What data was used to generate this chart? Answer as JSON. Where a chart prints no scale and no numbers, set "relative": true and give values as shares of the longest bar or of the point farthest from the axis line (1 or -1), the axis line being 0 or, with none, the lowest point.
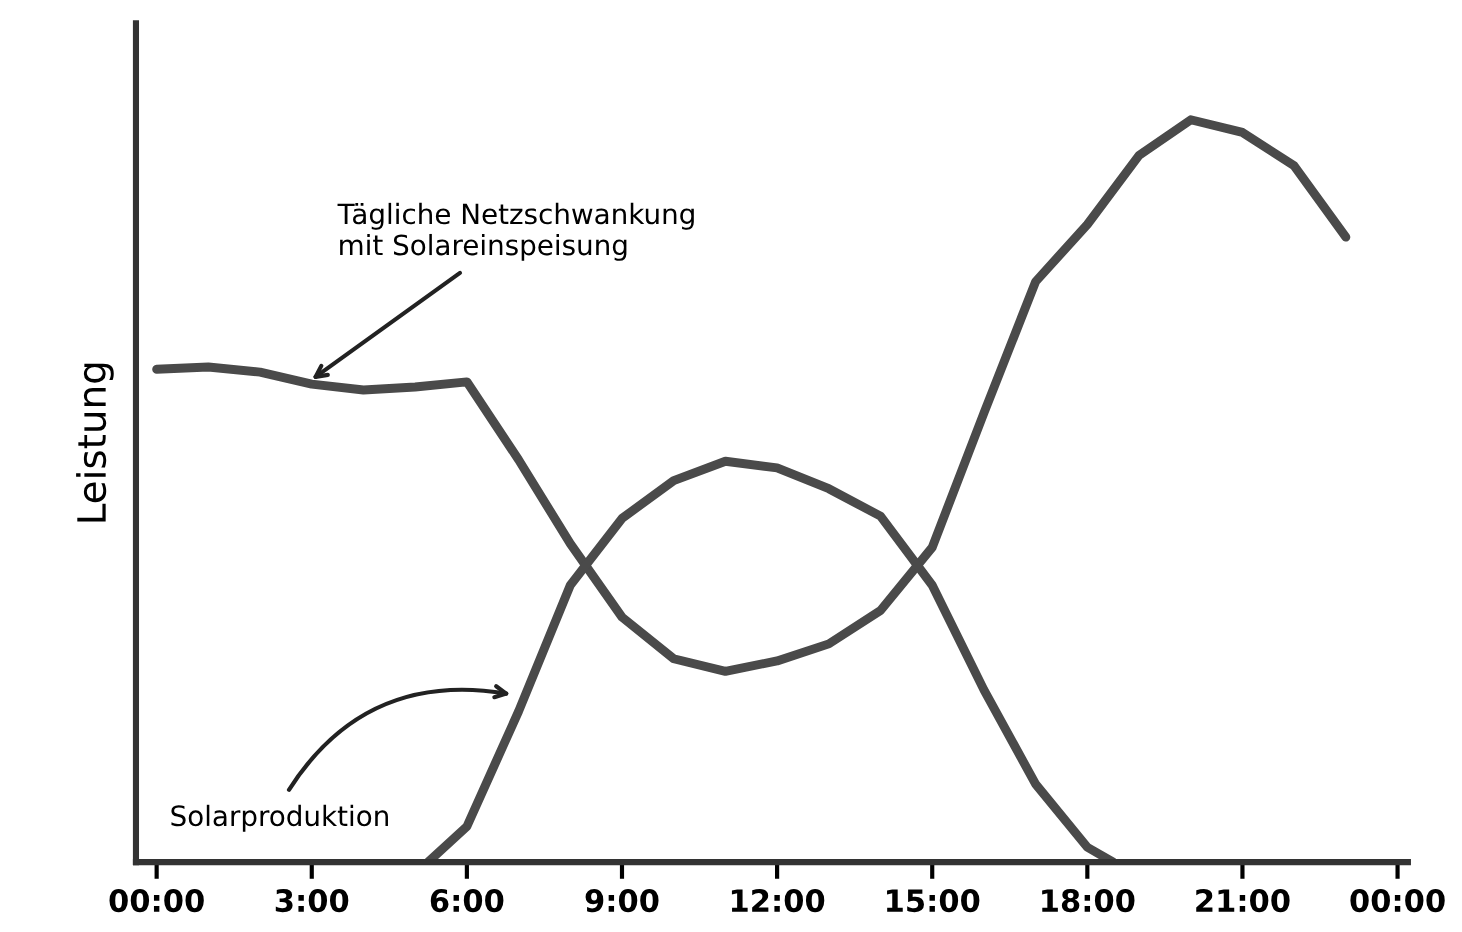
{
  "chart_data": {
    "type": "line",
    "relative": true,
    "ylabel": "Leistung",
    "xlim": [
      -0.4,
      24.2
    ],
    "xticks": [
      {
        "value": 0,
        "label": "00:00"
      },
      {
        "value": 3,
        "label": "3:00"
      },
      {
        "value": 6,
        "label": "6:00"
      },
      {
        "value": 9,
        "label": "9:00"
      },
      {
        "value": 12,
        "label": "12:00"
      },
      {
        "value": 15,
        "label": "15:00"
      },
      {
        "value": 18,
        "label": "18:00"
      },
      {
        "value": 21,
        "label": "21:00"
      },
      {
        "value": 24,
        "label": "00:00"
      }
    ],
    "series": [
      {
        "color": "#4a4a4a",
        "x": [
          0,
          1,
          2,
          3,
          4,
          5,
          6,
          7,
          8,
          9,
          10,
          11,
          12,
          13,
          14,
          15,
          16,
          17,
          18,
          19,
          20,
          21,
          22,
          23
        ],
        "values": [
          0.664,
          0.667,
          0.66,
          0.644,
          0.636,
          0.64,
          0.647,
          0.542,
          0.429,
          0.33,
          0.274,
          0.257,
          0.271,
          0.294,
          0.339,
          0.424,
          0.605,
          0.782,
          0.859,
          0.952,
          1.0,
          0.983,
          0.938,
          0.842
        ]
      },
      {
        "color": "#4a4a4a",
        "x": [
          5.25,
          6,
          7,
          8,
          9,
          10,
          11,
          12,
          13,
          14,
          15,
          16,
          17,
          18,
          18.5
        ],
        "values": [
          0,
          0.048,
          0.203,
          0.373,
          0.463,
          0.514,
          0.54,
          0.531,
          0.503,
          0.466,
          0.373,
          0.232,
          0.105,
          0.02,
          0
        ]
      }
    ],
    "annotations": [
      {
        "text": "Tägliche Netzschwankung\nmit Solareinspeisung",
        "x": 3,
        "y": 0.65
      },
      {
        "text": "Solarproduktion",
        "x": 6.85,
        "y": 0.226
      }
    ],
    "grid": false,
    "legend": false,
    "marker": "none",
    "line_style": "solid"
  }
}
